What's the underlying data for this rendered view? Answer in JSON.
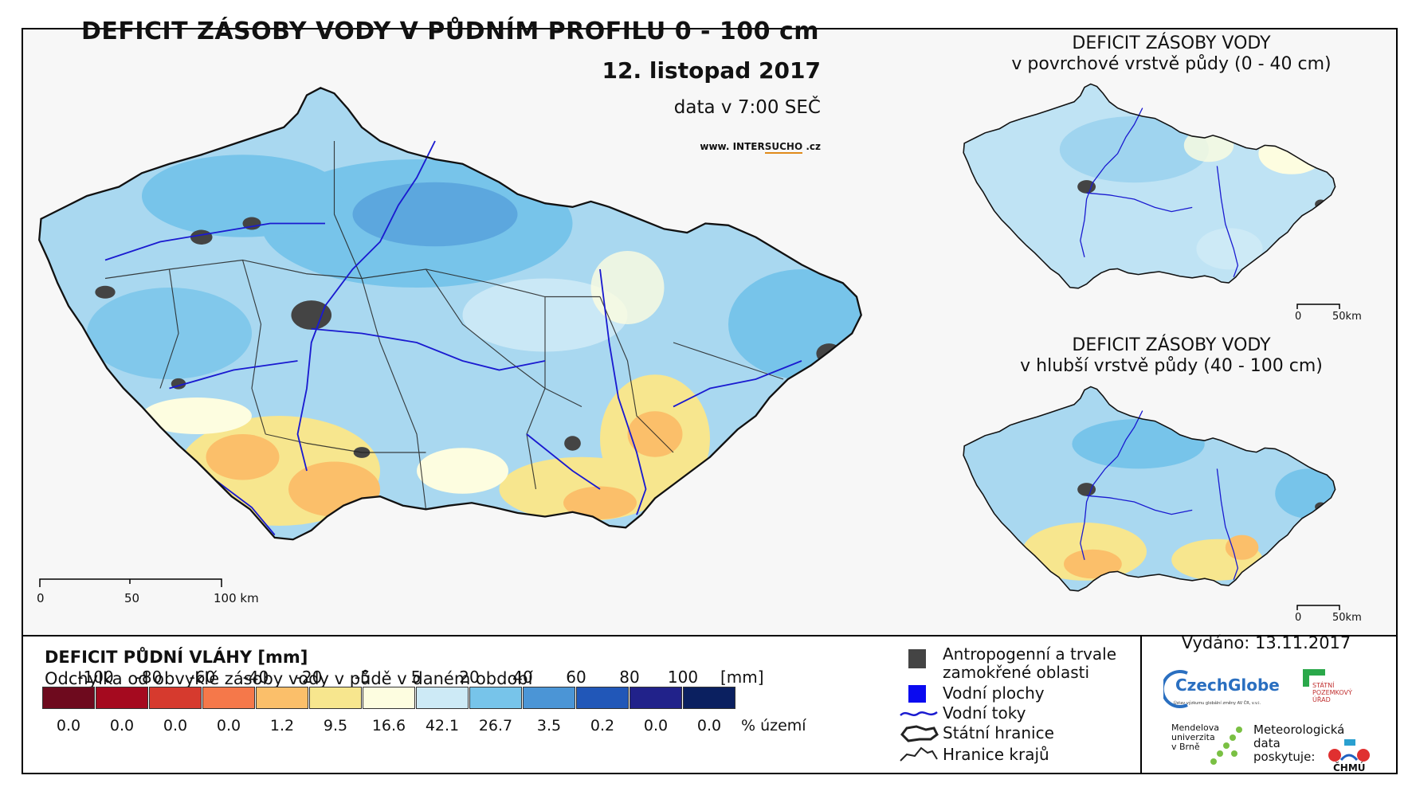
{
  "title": "DEFICIT ZÁSOBY VODY V PŮDNÍM PROFILU 0 - 100 cm",
  "date": "12. listopad 2017",
  "time": "data v 7:00 SEČ",
  "website": {
    "prefix": "www. INTER",
    "highlight": "SUCHO",
    "suffix": " .cz"
  },
  "inset_top": {
    "title_line1": "DEFICIT ZÁSOBY VODY",
    "title_line2": "v povrchové vrstvě půdy (0 - 40 cm)",
    "scale_0": "0",
    "scale_50": "50km"
  },
  "inset_bottom": {
    "title_line1": "DEFICIT ZÁSOBY VODY",
    "title_line2": "v hlubší vrstvě půdy (40 - 100 cm)",
    "scale_0": "0",
    "scale_50": "50km"
  },
  "main_scale": {
    "l0": "0",
    "l50": "50",
    "l100": "100 km"
  },
  "legend": {
    "title": "DEFICIT PŮDNÍ VLÁHY [mm]",
    "subtitle": "Odchylka od obvyklé zásoby vody v půdě v daném období",
    "ticks": [
      "-100",
      "-80",
      "-60",
      "-40",
      "-20",
      "-5",
      "5",
      "20",
      "40",
      "60",
      "80",
      "100"
    ],
    "unit": "[mm]",
    "colors": [
      "#6e0a1e",
      "#a50a1f",
      "#d63a2e",
      "#f5784a",
      "#fbbf6a",
      "#f7e68e",
      "#fdfde0",
      "#cdeaf6",
      "#77c4ea",
      "#4b95d6",
      "#2157b8",
      "#21228a",
      "#0b2060"
    ],
    "percentages": [
      "0.0",
      "0.0",
      "0.0",
      "0.0",
      "1.2",
      "9.5",
      "16.6",
      "42.1",
      "26.7",
      "3.5",
      "0.2",
      "0.0",
      "0.0"
    ],
    "percent_unit": "% území"
  },
  "map_legend": {
    "urban_line1": "Antropogenní a trvale",
    "urban_line2": "zamokřené oblasti",
    "water_bodies": "Vodní plochy",
    "rivers": "Vodní toky",
    "state_border": "Státní hranice",
    "region_border": "Hranice krajů"
  },
  "issued": "Vydáno: 13.11.2017",
  "logos": {
    "czechglobe": "CzechGlobe",
    "czechglobe_sub": "Ústav výzkumu globální změny AV ČR, v.v.i.",
    "spu_line1": "STÁTNÍ",
    "spu_line2": "POZEMKOVÝ",
    "spu_line3": "ÚŘAD",
    "mendel_line1": "Mendelova",
    "mendel_line2": "univerzita",
    "mendel_line3": "v Brně",
    "met_line1": "Meteorologická",
    "met_line2": "data",
    "met_line3": "poskytuje:",
    "chmu": "ČHMÚ"
  }
}
